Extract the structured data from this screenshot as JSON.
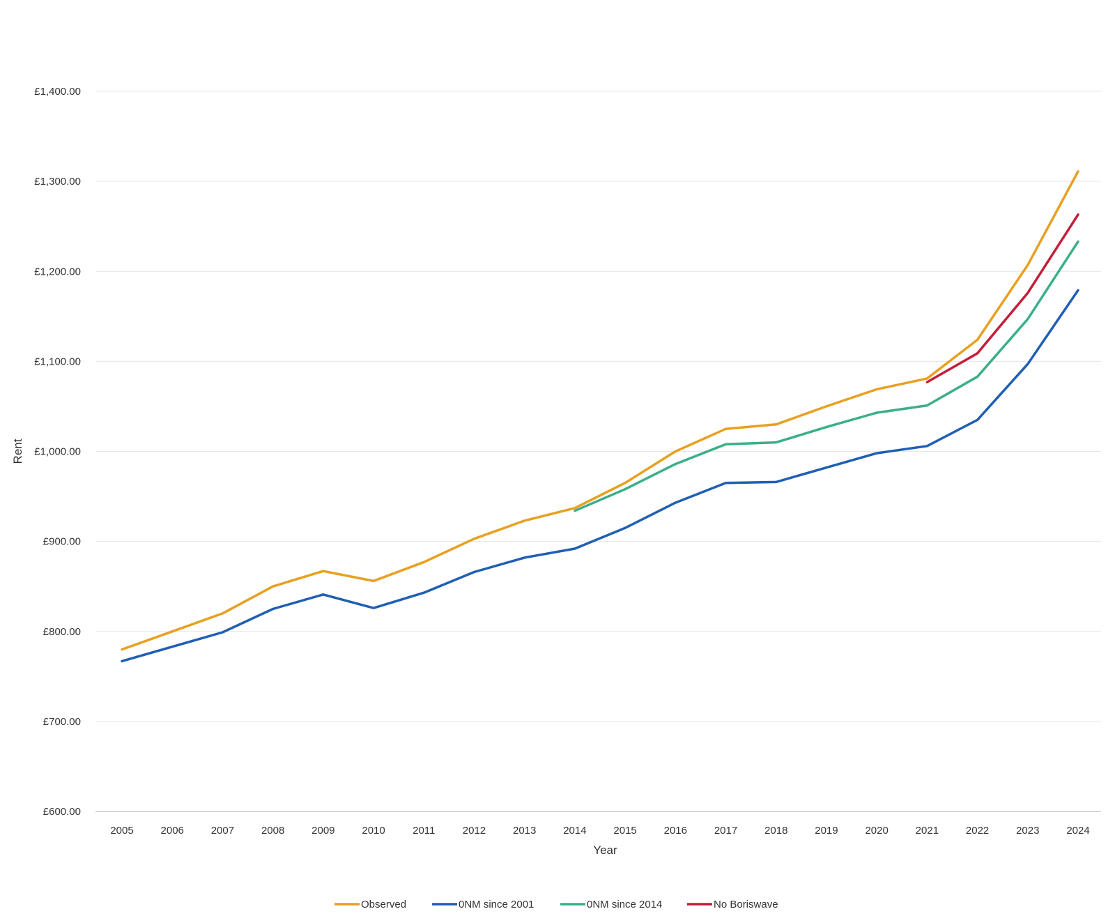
{
  "chart_data": {
    "type": "line",
    "title": "",
    "xlabel": "Year",
    "ylabel": "Rent",
    "ylim": [
      600,
      1400
    ],
    "y_ticks": [
      600,
      700,
      800,
      900,
      1000,
      1100,
      1200,
      1300,
      1400
    ],
    "y_tick_labels": [
      "£600.00",
      "£700.00",
      "£800.00",
      "£900.00",
      "£1,000.00",
      "£1,100.00",
      "£1,200.00",
      "£1,300.00",
      "£1,400.00"
    ],
    "categories": [
      "2005",
      "2006",
      "2007",
      "2008",
      "2009",
      "2010",
      "2011",
      "2012",
      "2013",
      "2014",
      "2015",
      "2016",
      "2017",
      "2018",
      "2019",
      "2020",
      "2021",
      "2022",
      "2023",
      "2024"
    ],
    "grid": true,
    "legend_position": "bottom",
    "series": [
      {
        "name": "Observed",
        "color": "#e8a020",
        "values": [
          780,
          800,
          820,
          850,
          867,
          856,
          877,
          903,
          923,
          937,
          965,
          1000,
          1025,
          1030,
          1050,
          1069,
          1081,
          1124,
          1207,
          1311
        ]
      },
      {
        "name": "0NM since 2001",
        "color": "#1f5fb4",
        "values": [
          767,
          783,
          799,
          825,
          841,
          826,
          843,
          866,
          882,
          892,
          915,
          943,
          965,
          966,
          982,
          998,
          1006,
          1035,
          1097,
          1179
        ]
      },
      {
        "name": "0NM since 2014",
        "color": "#3aaf8a",
        "values": [
          null,
          null,
          null,
          null,
          null,
          null,
          null,
          null,
          null,
          934,
          958,
          986,
          1008,
          1010,
          1027,
          1043,
          1051,
          1083,
          1147,
          1233
        ]
      },
      {
        "name": "No Boriswave",
        "color": "#c41e3a",
        "values": [
          null,
          null,
          null,
          null,
          null,
          null,
          null,
          null,
          null,
          null,
          null,
          null,
          null,
          null,
          null,
          null,
          1077,
          1109,
          1176,
          1263
        ]
      }
    ]
  }
}
